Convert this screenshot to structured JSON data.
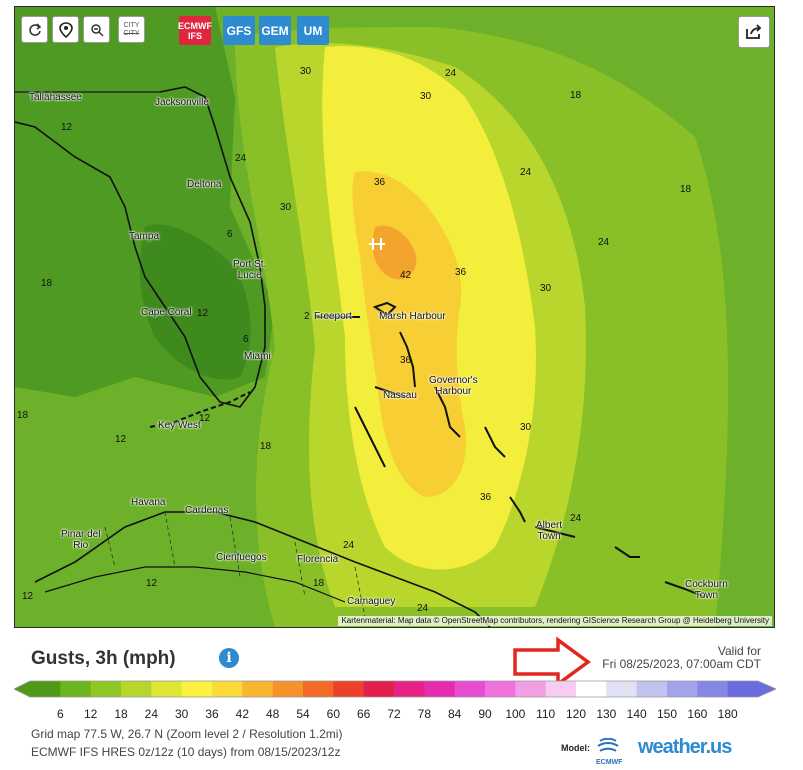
{
  "toolbar": {
    "refresh_icon": "refresh-icon",
    "location_icon": "map-pin-icon",
    "zoom_icon": "zoom-out-icon",
    "city_toggle_line1": "CITY",
    "city_toggle_line2": "CITY",
    "models": [
      {
        "line1": "ECMWF",
        "line2": "IFS",
        "color": "#e0263f",
        "selected": true
      },
      {
        "label": "GFS",
        "color": "#2e8bcf"
      },
      {
        "label": "GEM",
        "color": "#2e8bcf"
      },
      {
        "label": "UM",
        "color": "#2e8bcf"
      }
    ],
    "share_icon": "share-icon"
  },
  "map": {
    "cities": {
      "tallahassee": "Tallahassee",
      "jacksonville": "Jacksonville",
      "deltona": "Deltona",
      "tampa": "Tampa",
      "port_st_lucie_1": "Port St.",
      "port_st_lucie_2": "Lucie",
      "cape_coral": "Cape Coral",
      "miami": "Miami",
      "key_west": "Key West",
      "freeport": "Freeport",
      "marsh_harbour": "Marsh Harbour",
      "nassau": "Nassau",
      "governors_harbour_1": "Governor's",
      "governors_harbour_2": "Harbour",
      "havana": "Havana",
      "cardenas": "Cardenas",
      "pinar_del_rio_1": "Pinar del",
      "pinar_del_rio_2": "Rio",
      "cienfuegos": "Cienfuegos",
      "florencia": "Florencia",
      "camaguey": "Camaguey",
      "albert_town_1": "Albert",
      "albert_town_2": "Town",
      "cockburn_town_1": "Cockburn",
      "cockburn_town_2": "Town"
    },
    "contours": {
      "c30a": "30",
      "c24a": "24",
      "c30b": "30",
      "c18a": "18",
      "c12a": "12",
      "c24b": "24",
      "c24c": "24",
      "c36a": "36",
      "c18b": "18",
      "c30c": "30",
      "c6a": "6",
      "c24d": "24",
      "c42": "42",
      "c36b": "36",
      "c18c": "18",
      "c30d": "30",
      "c12b": "12",
      "c2": "2",
      "c36c": "36",
      "c6b": "6",
      "c18d": "18",
      "c12c": "12",
      "c12d": "12",
      "c18e": "18",
      "c30e": "30",
      "c36d": "36",
      "c24e": "24",
      "c24f": "24",
      "c12e": "12",
      "c18f": "18",
      "c24g": "24",
      "c12f": "12"
    },
    "attribution": "Kartenmaterial: Map data © OpenStreetMap contributors, rendering GIScience Research Group @ Heidelberg University"
  },
  "legend": {
    "title": "Gusts, 3h (mph)",
    "info_icon": "i",
    "valid_label": "Valid for",
    "valid_time": "Fri 08/25/2023, 07:00am CDT",
    "ticks": [
      "6",
      "12",
      "18",
      "24",
      "30",
      "36",
      "42",
      "48",
      "54",
      "60",
      "66",
      "72",
      "78",
      "84",
      "90",
      "100",
      "110",
      "120",
      "130",
      "140",
      "150",
      "160",
      "180"
    ],
    "colors": [
      "#4e9a16",
      "#6bb41e",
      "#8fc624",
      "#b7d62c",
      "#dfe535",
      "#fbf23f",
      "#fadb39",
      "#f8b52f",
      "#f5922a",
      "#f26a26",
      "#ec4128",
      "#e31f4b",
      "#e52386",
      "#e62cae",
      "#e84cd1",
      "#ee71dc",
      "#f19fe5",
      "#f6cdf0",
      "#ffffff",
      "#e1e1f5",
      "#c2c2ef",
      "#a3a3ea",
      "#8686e6",
      "#6b6be0"
    ],
    "grid_info": "Grid map 77.5 W, 26.7 N (Zoom level 2 / Resolution 1.2mi)",
    "model_info": "ECMWF IFS HRES 0z/12z (10 days) from 08/15/2023/12z",
    "model_label": "Model:",
    "ecmwf_label": "ECMWF",
    "brand": "weather.us"
  }
}
